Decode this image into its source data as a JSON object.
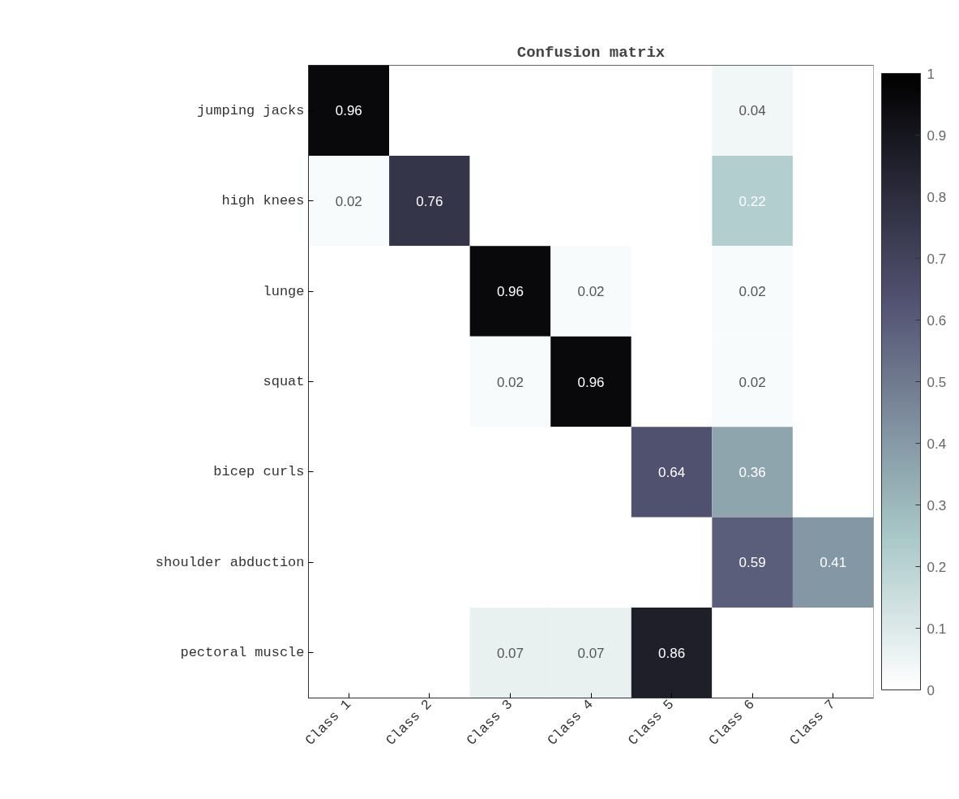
{
  "chart_data": {
    "type": "heatmap",
    "title": "Confusion matrix",
    "categories": [
      "Class 1",
      "Class 2",
      "Class 3",
      "Class 4",
      "Class 5",
      "Class 6",
      "Class 7"
    ],
    "y_categories": [
      "jumping jacks",
      "high knees",
      "lunge",
      "squat",
      "bicep curls",
      "shoulder abduction",
      "pectoral muscle"
    ],
    "cells": [
      [
        0.96,
        0,
        0,
        0,
        0,
        0.04,
        0
      ],
      [
        0.02,
        0.76,
        0,
        0,
        0,
        0.22,
        0
      ],
      [
        0,
        0,
        0.96,
        0.02,
        0,
        0.02,
        0
      ],
      [
        0,
        0,
        0.02,
        0.96,
        0,
        0.02,
        0
      ],
      [
        0,
        0,
        0,
        0,
        0.64,
        0.36,
        0
      ],
      [
        0,
        0,
        0,
        0,
        0,
        0.59,
        0.41
      ],
      [
        0,
        0,
        0.07,
        0.07,
        0.86,
        0,
        0
      ]
    ],
    "cell_labels": [
      [
        "0.96",
        null,
        null,
        null,
        null,
        "0.04",
        null
      ],
      [
        "0.02",
        "0.76",
        null,
        null,
        null,
        "0.22",
        null
      ],
      [
        null,
        null,
        "0.96",
        "0.02",
        null,
        "0.02",
        null
      ],
      [
        null,
        null,
        "0.02",
        "0.96",
        null,
        "0.02",
        null
      ],
      [
        null,
        null,
        null,
        null,
        "0.64",
        "0.36",
        null
      ],
      [
        null,
        null,
        null,
        null,
        null,
        "0.59",
        "0.41"
      ],
      [
        null,
        null,
        "0.07",
        "0.07",
        "0.86",
        null,
        null
      ]
    ],
    "clim": [
      0,
      1
    ],
    "cticks": [
      0,
      0.1,
      0.2,
      0.3,
      0.4,
      0.5,
      0.6,
      0.7,
      0.8,
      0.9,
      1
    ]
  }
}
